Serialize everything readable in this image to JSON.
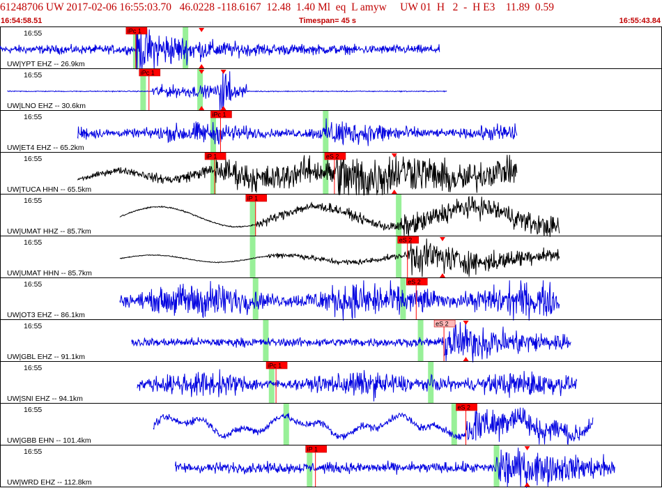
{
  "header": {
    "event_line": "61248706 UW 2017-02-06 16:55:03.70   46.0228 -118.6167  12.48  1.40 Ml  eq  L amyw     UW 01  H   2  -  H E3    11.89  0.59",
    "start_time": "16:54:58.51",
    "timespan": "Timespan=  45 s",
    "end_time": "16:55:43.84"
  },
  "colors": {
    "header_text": "#c00000",
    "trace_blue": "#0000e0",
    "trace_black": "#000000",
    "pick_fill": "#ff0000",
    "pick_fill_light": "#ffb8b8",
    "theoretical_band": "#98f098",
    "pick_line": "#ff0000"
  },
  "traces": [
    {
      "time_label": "16:55",
      "station_label": "UW|YPT EHZ -- 26.9km",
      "color": "blue",
      "style": "pick_impulsive",
      "data_start_s": 0.0,
      "data_end_s": 30.1,
      "amp": 0.3,
      "noise": 0.18,
      "picks": [
        {
          "label": "iPc 1",
          "t": 9.3,
          "fill": "red",
          "type": "P"
        }
      ],
      "arrows": [
        {
          "t": 13.8
        }
      ],
      "bands": [
        9.3,
        12.7
      ]
    },
    {
      "time_label": "16:55",
      "station_label": "UW|LNO EHZ -- 30.6km",
      "color": "blue",
      "style": "flat_burst",
      "data_start_s": 0.5,
      "data_end_s": 30.6,
      "amp": 0.85,
      "noise": 0.05,
      "picks": [
        {
          "label": "iPc 1",
          "t": 10.2,
          "fill": "red",
          "type": "P"
        }
      ],
      "arrows": [
        {
          "t": 13.8
        },
        {
          "t": 15.3
        }
      ],
      "bands": [
        9.8,
        13.7
      ]
    },
    {
      "time_label": "16:55",
      "station_label": "UW|ET4 EHZ -- 65.2km",
      "color": "blue",
      "style": "noisy",
      "data_start_s": 5.3,
      "data_end_s": 35.4,
      "amp": 0.45,
      "noise": 0.38,
      "picks": [
        {
          "label": "iPc 1",
          "t": 15.1,
          "fill": "red",
          "type": "P"
        }
      ],
      "arrows": [],
      "bands": [
        14.6,
        22.3
      ]
    },
    {
      "time_label": "16:55",
      "station_label": "UW|TUCA HHN -- 65.5km",
      "color": "black",
      "style": "growing",
      "data_start_s": 5.3,
      "data_end_s": 35.4,
      "amp": 0.75,
      "noise": 0.22,
      "picks": [
        {
          "label": "iP 1",
          "t": 14.7,
          "fill": "red",
          "type": "P"
        },
        {
          "label": "eS 2",
          "t": 22.9,
          "fill": "red",
          "type": "S"
        }
      ],
      "arrows": [
        {
          "t": 27.0
        }
      ],
      "bands": [
        14.6,
        22.3
      ]
    },
    {
      "time_label": "16:55",
      "station_label": "UW|UMAT HHZ -- 85.7km",
      "color": "black",
      "style": "longperiod",
      "data_start_s": 8.2,
      "data_end_s": 38.3,
      "amp": 0.55,
      "noise": 0.25,
      "picks": [
        {
          "label": "iP 1",
          "t": 17.5,
          "fill": "red",
          "type": "P"
        }
      ],
      "arrows": [],
      "bands": [
        17.3,
        27.3
      ]
    },
    {
      "time_label": "16:55",
      "station_label": "UW|UMAT HHN -- 85.7km",
      "color": "black",
      "style": "longperiod2",
      "data_start_s": 8.2,
      "data_end_s": 38.3,
      "amp": 0.5,
      "noise": 0.18,
      "picks": [
        {
          "label": "eS 2",
          "t": 27.9,
          "fill": "red",
          "type": "S"
        }
      ],
      "arrows": [
        {
          "t": 30.3
        }
      ],
      "bands": [
        17.3,
        27.3
      ]
    },
    {
      "time_label": "16:55",
      "station_label": "UW|OT3 EHZ -- 86.1km",
      "color": "blue",
      "style": "noisy",
      "data_start_s": 8.2,
      "data_end_s": 38.3,
      "amp": 0.75,
      "noise": 0.65,
      "picks": [
        {
          "label": "eS 2",
          "t": 28.5,
          "fill": "red",
          "type": "S"
        }
      ],
      "arrows": [],
      "bands": [
        17.5,
        27.6
      ]
    },
    {
      "time_label": "16:55",
      "station_label": "UW|GBL EHZ -- 91.1km",
      "color": "blue",
      "style": "growing2",
      "data_start_s": 9.0,
      "data_end_s": 39.1,
      "amp": 0.65,
      "noise": 0.18,
      "picks": [
        {
          "label": "eS 2",
          "t": 30.4,
          "fill": "light",
          "type": "S"
        }
      ],
      "arrows": [
        {
          "t": 31.9
        }
      ],
      "bands": [
        18.2,
        28.8
      ]
    },
    {
      "time_label": "16:55",
      "station_label": "UW|SNI EHZ -- 94.1km",
      "color": "blue",
      "style": "noisy",
      "data_start_s": 9.4,
      "data_end_s": 39.5,
      "amp": 0.65,
      "noise": 0.45,
      "picks": [
        {
          "label": "iPc 1",
          "t": 18.9,
          "fill": "red",
          "type": "P"
        }
      ],
      "arrows": [],
      "bands": [
        18.6,
        29.5
      ]
    },
    {
      "time_label": "16:55",
      "station_label": "UW|GBB EHN -- 101.4km",
      "color": "blue",
      "style": "wandering",
      "data_start_s": 10.5,
      "data_end_s": 40.6,
      "amp": 0.55,
      "noise": 0.22,
      "picks": [
        {
          "label": "eS 2",
          "t": 31.9,
          "fill": "red",
          "type": "S"
        }
      ],
      "arrows": [],
      "bands": [
        19.6,
        31.1
      ]
    },
    {
      "time_label": "16:55",
      "station_label": "UW|WRD EHZ -- 112.8km",
      "color": "blue",
      "style": "growing2",
      "data_start_s": 12.0,
      "data_end_s": 42.1,
      "amp": 0.55,
      "noise": 0.22,
      "picks": [
        {
          "label": "iP 1",
          "t": 21.6,
          "fill": "red",
          "type": "P"
        }
      ],
      "arrows": [
        {
          "t": 36.1
        }
      ],
      "bands": [
        21.2,
        34.0
      ]
    }
  ]
}
